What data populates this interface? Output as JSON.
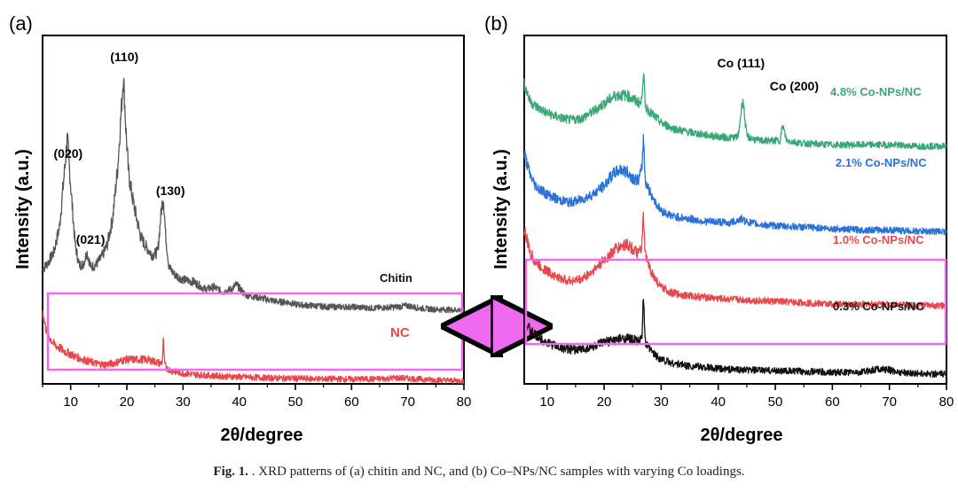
{
  "panel_labels": [
    "(a)",
    "(b)"
  ],
  "caption": {
    "bold": "Fig. 1.",
    "text": " . XRD patterns of (a) chitin and NC, and (b) Co–NPs/NC samples with varying Co loadings."
  },
  "colors": {
    "chitin": "#555555",
    "nc": "#e8484b",
    "co48": "#3aa876",
    "co21": "#2a73d6",
    "co10": "#e8484b",
    "co03": "#111111",
    "highlight_box": "#f06af0",
    "arrow": "#f06af0"
  },
  "chart_data": [
    {
      "type": "line",
      "panel": "(a)",
      "xlabel": "2θ/degree",
      "ylabel": "Intensity (a.u.)",
      "xlim": [
        5,
        80
      ],
      "xticks": [
        10,
        20,
        30,
        40,
        50,
        60,
        70,
        80
      ],
      "yticks_shown": false,
      "series": [
        {
          "name": "Chitin",
          "color": "#555555",
          "x": [
            5,
            6,
            7,
            8,
            8.8,
            9.4,
            10,
            10.8,
            11.5,
            12.2,
            12.9,
            13.6,
            14.5,
            15.5,
            16.5,
            17.5,
            18.4,
            19.0,
            19.4,
            19.8,
            20.3,
            21,
            21.8,
            22.5,
            23.5,
            24.5,
            25.5,
            26.1,
            26.5,
            26.9,
            27.5,
            28.5,
            30,
            32,
            34,
            35.5,
            37,
            38.5,
            39.5,
            41,
            43,
            45,
            47,
            48.5,
            50,
            53,
            56,
            60,
            64,
            68,
            70,
            72,
            75,
            78,
            80
          ],
          "values": [
            4.6,
            4.9,
            5.3,
            6.3,
            8.3,
            9.9,
            8.0,
            5.6,
            4.8,
            4.8,
            5.3,
            4.7,
            4.8,
            5.1,
            5.6,
            6.7,
            8.8,
            11.0,
            12.4,
            10.4,
            8.5,
            7.5,
            6.6,
            5.9,
            5.5,
            5.2,
            5.3,
            6.9,
            7.6,
            6.0,
            4.7,
            4.4,
            4.2,
            4.1,
            3.8,
            3.9,
            3.7,
            3.8,
            4.0,
            3.6,
            3.5,
            3.4,
            3.3,
            3.3,
            3.2,
            3.15,
            3.1,
            3.1,
            3.05,
            3.1,
            3.15,
            3.05,
            3.0,
            2.98,
            2.98
          ]
        },
        {
          "name": "NC",
          "color": "#e8484b",
          "x": [
            5,
            5.5,
            6.2,
            7,
            8,
            9,
            10,
            11,
            12,
            13,
            14,
            15,
            16,
            17,
            18,
            19,
            20,
            21,
            22,
            23,
            24,
            25,
            26,
            26.3,
            26.5,
            26.7,
            27,
            28,
            30,
            32,
            35,
            38,
            40,
            45,
            50,
            55,
            60,
            65,
            68,
            70,
            72,
            75,
            78,
            80
          ],
          "values": [
            2.9,
            2.3,
            1.9,
            1.6,
            1.45,
            1.3,
            1.2,
            1.08,
            1.0,
            0.92,
            0.85,
            0.8,
            0.78,
            0.8,
            0.86,
            0.93,
            0.98,
            0.98,
            0.98,
            0.98,
            0.96,
            0.9,
            0.82,
            0.9,
            1.8,
            0.85,
            0.65,
            0.52,
            0.42,
            0.38,
            0.33,
            0.3,
            0.28,
            0.24,
            0.22,
            0.2,
            0.19,
            0.2,
            0.24,
            0.22,
            0.19,
            0.16,
            0.13,
            0.12
          ]
        }
      ],
      "annotations": [
        {
          "text": "(020)",
          "x": 9.4
        },
        {
          "text": "(021)",
          "x": 12.9
        },
        {
          "text": "(110)",
          "x": 19.4
        },
        {
          "text": "(130)",
          "x": 26.5
        }
      ],
      "series_labels": [
        {
          "text": "Chitin",
          "color": "#111111"
        },
        {
          "text": "NC",
          "color": "#e8484b"
        }
      ]
    },
    {
      "type": "line",
      "panel": "(b)",
      "xlabel": "2θ/degree",
      "ylabel": "Intensity (a.u.)",
      "xlim": [
        6,
        80
      ],
      "xticks": [
        10,
        20,
        30,
        40,
        50,
        60,
        70,
        80
      ],
      "yticks_shown": false,
      "series": [
        {
          "name": "4.8% Co-NPs/NC",
          "color": "#3aa876",
          "x": [
            6,
            7,
            8,
            10,
            12,
            14,
            16,
            18,
            20,
            22,
            24,
            25.5,
            26.5,
            26.9,
            27.2,
            28,
            30,
            32,
            35,
            38,
            40,
            42,
            43.5,
            44.3,
            45,
            47,
            49,
            50.8,
            51.3,
            52,
            55,
            60,
            65,
            70,
            75,
            80
          ],
          "values": [
            10.9,
            10.3,
            10.1,
            9.85,
            9.7,
            9.6,
            9.65,
            9.9,
            10.2,
            10.5,
            10.5,
            10.3,
            10.2,
            11.4,
            10.1,
            9.9,
            9.5,
            9.3,
            9.15,
            9.05,
            9.0,
            8.95,
            9.0,
            10.4,
            9.0,
            8.85,
            8.85,
            8.85,
            9.4,
            8.85,
            8.75,
            8.7,
            8.7,
            8.7,
            8.65,
            8.65
          ]
        },
        {
          "name": "2.1% Co-NPs/NC",
          "color": "#2a73d6",
          "x": [
            6,
            7,
            8,
            10,
            12,
            14,
            16,
            18,
            20,
            21,
            22,
            23,
            24,
            25,
            26,
            26.6,
            26.9,
            27.2,
            28,
            29,
            30,
            32,
            35,
            38,
            40,
            42,
            44,
            45,
            47,
            50,
            55,
            60,
            65,
            70,
            75,
            80
          ],
          "values": [
            8.4,
            7.6,
            7.2,
            6.9,
            6.7,
            6.6,
            6.7,
            6.9,
            7.2,
            7.5,
            7.7,
            7.8,
            7.7,
            7.5,
            7.4,
            7.8,
            9.0,
            7.4,
            7.0,
            6.6,
            6.3,
            6.1,
            6.0,
            5.9,
            5.9,
            5.85,
            6.0,
            5.9,
            5.8,
            5.75,
            5.7,
            5.65,
            5.6,
            5.6,
            5.55,
            5.55
          ]
        },
        {
          "name": "1.0% Co-NPs/NC",
          "color": "#e8484b",
          "x": [
            6,
            7,
            8,
            10,
            12,
            14,
            16,
            18,
            20,
            22,
            23,
            24,
            25,
            26,
            26.6,
            26.9,
            27.2,
            28,
            29,
            30,
            32,
            35,
            38,
            40,
            45,
            50,
            55,
            60,
            65,
            70,
            75,
            80
          ],
          "values": [
            5.6,
            4.8,
            4.4,
            4.1,
            3.85,
            3.75,
            3.8,
            4.1,
            4.5,
            4.9,
            5.0,
            5.1,
            4.9,
            4.7,
            5.0,
            6.1,
            4.7,
            4.2,
            3.8,
            3.5,
            3.3,
            3.2,
            3.15,
            3.1,
            3.05,
            3.0,
            2.95,
            2.9,
            2.9,
            2.9,
            2.85,
            2.85
          ]
        },
        {
          "name": "0.3% Co-NPs/NC",
          "color": "#111111",
          "x": [
            6,
            7,
            8,
            10,
            12,
            14,
            16,
            18,
            20,
            22,
            24,
            25,
            26,
            26.6,
            26.9,
            27.2,
            28,
            29,
            30,
            32,
            35,
            38,
            40,
            45,
            50,
            55,
            60,
            65,
            68,
            70,
            72,
            75,
            80
          ],
          "values": [
            2.3,
            1.95,
            1.75,
            1.5,
            1.35,
            1.25,
            1.25,
            1.35,
            1.5,
            1.6,
            1.65,
            1.6,
            1.55,
            1.6,
            3.2,
            1.5,
            1.25,
            1.05,
            0.9,
            0.75,
            0.65,
            0.6,
            0.55,
            0.5,
            0.48,
            0.45,
            0.42,
            0.42,
            0.55,
            0.5,
            0.42,
            0.38,
            0.35
          ]
        }
      ],
      "annotations": [
        {
          "text": "Co (111)",
          "x": 44.3
        },
        {
          "text": "Co (200)",
          "x": 51.3
        }
      ],
      "series_labels": [
        {
          "text": "4.8% Co-NPs/NC",
          "color": "#3aa876"
        },
        {
          "text": "2.1% Co-NPs/NC",
          "color": "#2a73d6"
        },
        {
          "text": "1.0% Co-NPs/NC",
          "color": "#e8484b"
        },
        {
          "text": "0.3% Co-NPs/NC",
          "color": "#111111"
        }
      ]
    }
  ]
}
